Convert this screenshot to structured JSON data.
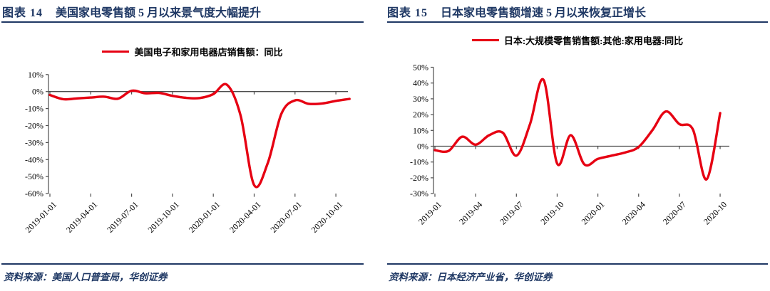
{
  "colors": {
    "navy": "#1f3864",
    "line_red": "#e60012",
    "axis_gray": "#4d4d4d",
    "tick_text": "#000000"
  },
  "figures": [
    {
      "header": {
        "prefix": "图表 14",
        "title": "美国家电零售额 5 月以来景气度大幅提升"
      },
      "legend": "美国电子和家用电器店销售额：同比",
      "source": "资料来源：美国人口普查局，华创证券"
    },
    {
      "header": {
        "prefix": "图表 15",
        "title": "日本家电零售额增速 5 月以来恢复正增长"
      },
      "legend": "日本:大规模零售销售额:其他:家用电器:同比",
      "source": "资料来源：日本经济产业省，华创证券"
    }
  ],
  "chart_data": [
    {
      "type": "line",
      "title": "美国家电零售额5月以来景气度大幅提升",
      "x": [
        "2019-01",
        "2019-02",
        "2019-03",
        "2019-04",
        "2019-05",
        "2019-06",
        "2019-07",
        "2019-08",
        "2019-09",
        "2019-10",
        "2019-11",
        "2019-12",
        "2020-01",
        "2020-02",
        "2020-03",
        "2020-04",
        "2020-05",
        "2020-06",
        "2020-07",
        "2020-08",
        "2020-09",
        "2020-10",
        "2020-11"
      ],
      "series": [
        {
          "name": "美国电子和家用电器店销售额：同比",
          "values": [
            -2,
            -4.5,
            -4,
            -3.5,
            -3,
            -4.2,
            0.5,
            -1,
            -0.8,
            -2.5,
            -3.7,
            -3.8,
            -1.5,
            4,
            -14,
            -55,
            -42,
            -13,
            -5.2,
            -7.2,
            -7,
            -5.5,
            -4.3
          ]
        }
      ],
      "x_tick_labels": [
        "2019-01-01",
        "2019-04-01",
        "2019-07-01",
        "2019-10-01",
        "2020-01-01",
        "2020-04-01",
        "2020-07-01",
        "2020-10-01"
      ],
      "x_tick_every": 3,
      "ylim": [
        -60,
        10
      ],
      "y_step": 10,
      "y_unit": "%",
      "grid": false,
      "legend_position": "top",
      "line_color": "#e60012"
    },
    {
      "type": "line",
      "title": "日本家电零售额增速5月以来恢复正增长",
      "x": [
        "2019-01",
        "2019-02",
        "2019-03",
        "2019-04",
        "2019-05",
        "2019-06",
        "2019-07",
        "2019-08",
        "2019-09",
        "2019-10",
        "2019-11",
        "2019-12",
        "2020-01",
        "2020-02",
        "2020-03",
        "2020-04",
        "2020-05",
        "2020-06",
        "2020-07",
        "2020-08",
        "2020-09",
        "2020-10"
      ],
      "series": [
        {
          "name": "日本:大规模零售销售额:其他:家用电器:同比",
          "values": [
            -2.5,
            -3,
            6,
            1,
            7,
            8.5,
            -6,
            14,
            42,
            -11,
            7,
            -11.5,
            -8,
            -6,
            -4,
            -0.5,
            10,
            22,
            14,
            10.5,
            -21,
            21
          ]
        }
      ],
      "x_tick_labels": [
        "2019-01",
        "2019-04",
        "2019-07",
        "2019-10",
        "2020-01",
        "2020-04",
        "2020-07",
        "2020-10"
      ],
      "x_tick_every": 3,
      "ylim": [
        -30,
        50
      ],
      "y_step": 10,
      "y_unit": "%",
      "grid": false,
      "legend_position": "top",
      "line_color": "#e60012"
    }
  ]
}
